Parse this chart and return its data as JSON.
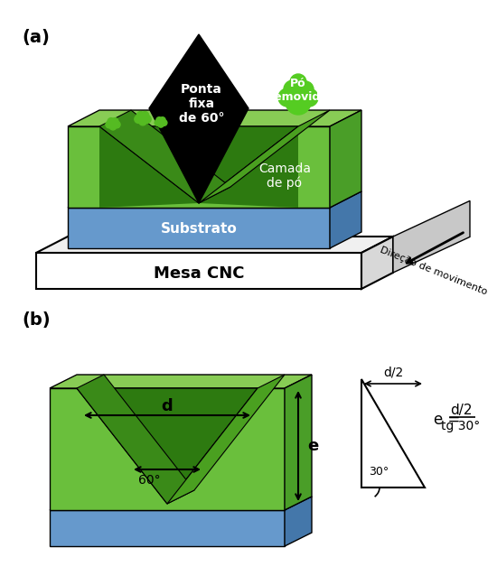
{
  "colors": {
    "light_green": "#6abf3c",
    "mid_green": "#4a9e28",
    "dark_green": "#2d7a10",
    "blue_substrate": "#6699cc",
    "blue_substrate_dark": "#4477aa",
    "black": "#000000",
    "white": "#ffffff",
    "gray_arrow": "#aaaaaa",
    "gray_light": "#cccccc",
    "gray_table": "#e8e8e8",
    "table_side": "#d0d0d0"
  },
  "panel_a_label": "(a)",
  "panel_b_label": "(b)",
  "text_ponta": "Ponta\nfixa\nde 60°",
  "text_camada": "Camada\nde pó",
  "text_substrato": "Substrato",
  "text_mesa": "Mesa CNC",
  "text_po_removido": "Pó\nremovido",
  "text_direcao": "Direção de movimento",
  "text_d": "d",
  "text_d2": "d/2",
  "text_e": "e",
  "text_60": "60°",
  "text_30": "30°",
  "text_formula": "e =   d/2\n      tg 30°"
}
